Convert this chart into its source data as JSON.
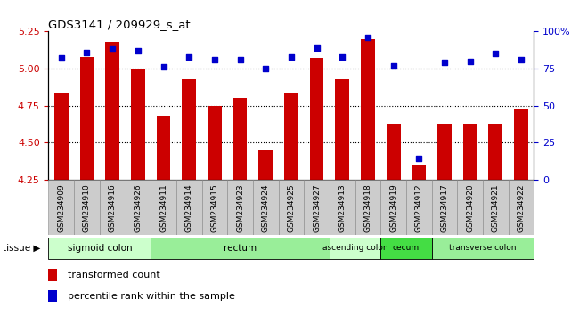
{
  "title": "GDS3141 / 209929_s_at",
  "samples": [
    "GSM234909",
    "GSM234910",
    "GSM234916",
    "GSM234926",
    "GSM234911",
    "GSM234914",
    "GSM234915",
    "GSM234923",
    "GSM234924",
    "GSM234925",
    "GSM234927",
    "GSM234913",
    "GSM234918",
    "GSM234919",
    "GSM234912",
    "GSM234917",
    "GSM234920",
    "GSM234921",
    "GSM234922"
  ],
  "bar_values": [
    4.83,
    5.08,
    5.18,
    5.0,
    4.68,
    4.93,
    4.75,
    4.8,
    4.45,
    4.83,
    5.07,
    4.93,
    5.2,
    4.63,
    4.35,
    4.63,
    4.63,
    4.63,
    4.73
  ],
  "dot_values": [
    82,
    86,
    88,
    87,
    76,
    83,
    81,
    81,
    75,
    83,
    89,
    83,
    96,
    77,
    14,
    79,
    80,
    85,
    81
  ],
  "ylim_left": [
    4.25,
    5.25
  ],
  "ylim_right": [
    0,
    100
  ],
  "yticks_left": [
    4.25,
    4.5,
    4.75,
    5.0,
    5.25
  ],
  "yticks_right": [
    0,
    25,
    50,
    75,
    100
  ],
  "bar_color": "#cc0000",
  "dot_color": "#0000cc",
  "tissue_groups": [
    {
      "label": "sigmoid colon",
      "start": 0,
      "end": 3,
      "color": "#ccffcc"
    },
    {
      "label": "rectum",
      "start": 4,
      "end": 10,
      "color": "#99ee99"
    },
    {
      "label": "ascending colon",
      "start": 11,
      "end": 12,
      "color": "#ccffcc"
    },
    {
      "label": "cecum",
      "start": 13,
      "end": 14,
      "color": "#44dd44"
    },
    {
      "label": "transverse colon",
      "start": 15,
      "end": 18,
      "color": "#99ee99"
    }
  ],
  "legend_bar_label": "transformed count",
  "legend_dot_label": "percentile rank within the sample",
  "background_color": "#ffffff",
  "label_color_left": "#cc0000",
  "label_color_right": "#0000cc",
  "xticklabel_bg": "#dddddd",
  "xticklabel_fontsize": 6.5,
  "bar_width": 0.55
}
